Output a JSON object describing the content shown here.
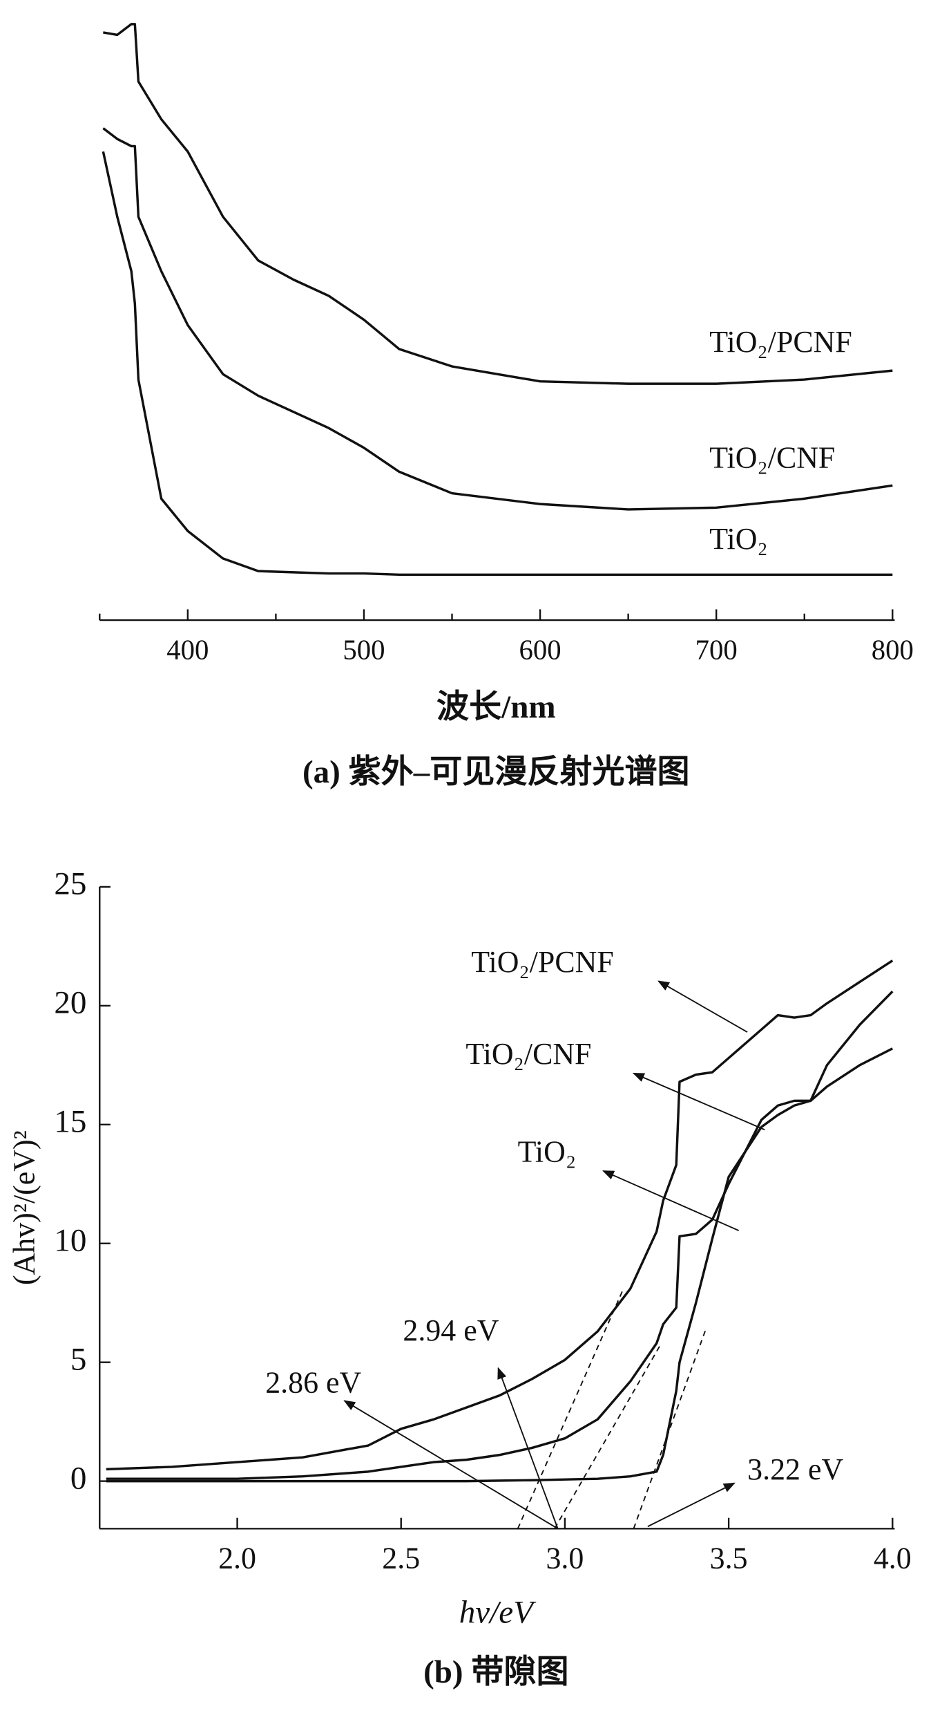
{
  "chart_data": [
    {
      "type": "line",
      "x_label": "波长/nm",
      "caption": "(a) 紫外–可见漫反射光谱图",
      "x": [
        352,
        360,
        368,
        370,
        372,
        385,
        400,
        420,
        440,
        460,
        480,
        500,
        520,
        550,
        600,
        650,
        700,
        750,
        800
      ],
      "xlim": [
        350,
        800
      ],
      "xticks": [
        400,
        500,
        600,
        700,
        800
      ],
      "x_minor_ticks": [
        350,
        450,
        550,
        650,
        750
      ],
      "ylim": [
        0,
        1
      ],
      "series": [
        {
          "name": "TiO₂/PCNF",
          "color": "#111111",
          "values": [
            0.982,
            0.978,
            0.996,
            0.996,
            0.9,
            0.837,
            0.783,
            0.674,
            0.601,
            0.569,
            0.542,
            0.502,
            0.453,
            0.424,
            0.399,
            0.395,
            0.395,
            0.402,
            0.417
          ]
        },
        {
          "name": "TiO₂/CNF",
          "color": "#111111",
          "values": [
            0.822,
            0.804,
            0.792,
            0.792,
            0.674,
            0.583,
            0.493,
            0.411,
            0.375,
            0.348,
            0.321,
            0.288,
            0.248,
            0.212,
            0.194,
            0.185,
            0.188,
            0.203,
            0.225
          ]
        },
        {
          "name": "TiO₂",
          "color": "#111111",
          "values": [
            0.783,
            0.674,
            0.583,
            0.529,
            0.402,
            0.203,
            0.149,
            0.103,
            0.082,
            0.08,
            0.078,
            0.078,
            0.076,
            0.076,
            0.076,
            0.076,
            0.076,
            0.076,
            0.076
          ]
        }
      ]
    },
    {
      "type": "line",
      "x_label": "hv/eV",
      "y_label": "(Ahv)²/(eV)²",
      "caption": "(b) 带隙图",
      "x": [
        1.6,
        1.8,
        2.0,
        2.2,
        2.4,
        2.5,
        2.6,
        2.7,
        2.8,
        2.9,
        3.0,
        3.1,
        3.2,
        3.28,
        3.3,
        3.34,
        3.35,
        3.4,
        3.45,
        3.5,
        3.6,
        3.65,
        3.7,
        3.75,
        3.8,
        3.9,
        4.0
      ],
      "xlim": [
        1.58,
        4.0
      ],
      "xticks": [
        {
          "value": 2,
          "label": "2.0"
        },
        2.5,
        {
          "value": 3,
          "label": "3.0"
        },
        3.5,
        {
          "value": 4,
          "label": "4.0"
        }
      ],
      "ylim": [
        -2,
        25
      ],
      "yticks": [
        0,
        5,
        10,
        15,
        20,
        25
      ],
      "series": [
        {
          "name": "TiO₂/PCNF",
          "color": "#111111",
          "values": [
            0.5,
            0.6,
            0.8,
            1.0,
            1.5,
            2.2,
            2.6,
            3.1,
            3.6,
            4.3,
            5.1,
            6.3,
            8.1,
            10.5,
            11.8,
            13.3,
            16.8,
            17.1,
            17.2,
            17.8,
            19.0,
            19.6,
            19.5,
            19.6,
            20.1,
            21.0,
            21.9
          ]
        },
        {
          "name": "TiO₂/CNF",
          "color": "#111111",
          "values": [
            0.1,
            0.1,
            0.1,
            0.2,
            0.4,
            0.6,
            0.8,
            0.9,
            1.1,
            1.4,
            1.8,
            2.6,
            4.2,
            5.8,
            6.6,
            7.3,
            10.3,
            10.4,
            11.0,
            12.5,
            15.2,
            15.8,
            16.0,
            16.0,
            17.5,
            19.2,
            20.6
          ]
        },
        {
          "name": "TiO₂",
          "color": "#111111",
          "values": [
            0,
            0,
            0,
            0,
            0,
            0,
            0,
            0,
            0.02,
            0.04,
            0.07,
            0.1,
            0.2,
            0.4,
            1.1,
            3.8,
            5.0,
            7.5,
            10.2,
            12.8,
            14.9,
            15.4,
            15.8,
            16.0,
            16.6,
            17.5,
            18.2
          ]
        }
      ],
      "annotations": [
        {
          "text": "2.94 eV"
        },
        {
          "text": "2.86 eV"
        },
        {
          "text": "3.22 eV"
        }
      ]
    }
  ]
}
